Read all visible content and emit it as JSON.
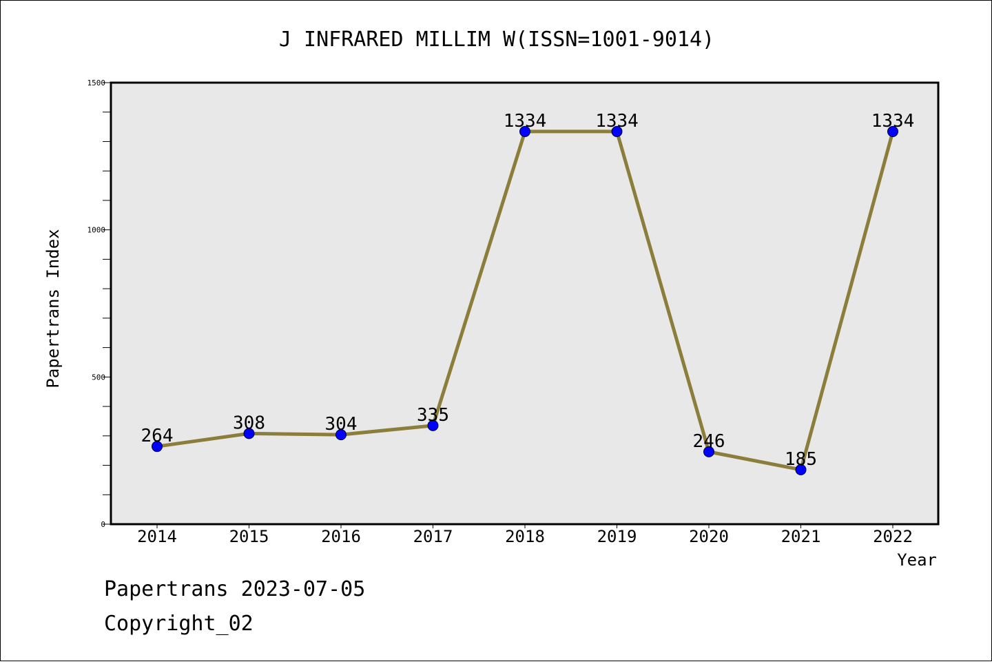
{
  "chart_data": {
    "type": "line",
    "title": "J INFRARED MILLIM W(ISSN=1001-9014)",
    "xlabel": "Year",
    "ylabel": "Papertrans Index",
    "categories": [
      "2014",
      "2015",
      "2016",
      "2017",
      "2018",
      "2019",
      "2020",
      "2021",
      "2022"
    ],
    "series": [
      {
        "values": [
          264,
          308,
          304,
          335,
          1334,
          1334,
          246,
          185,
          1334
        ]
      }
    ],
    "ylim": [
      0,
      1500
    ],
    "y_ticks": [
      "0",
      "500",
      "1000",
      "1500"
    ],
    "grid": false,
    "line_color": "#8B7D3A",
    "marker_color": "#0000FF",
    "plot_background": "#E8E8E8"
  },
  "footer": {
    "line1": "Papertrans 2023-07-05",
    "line2": "Copyright_02"
  }
}
